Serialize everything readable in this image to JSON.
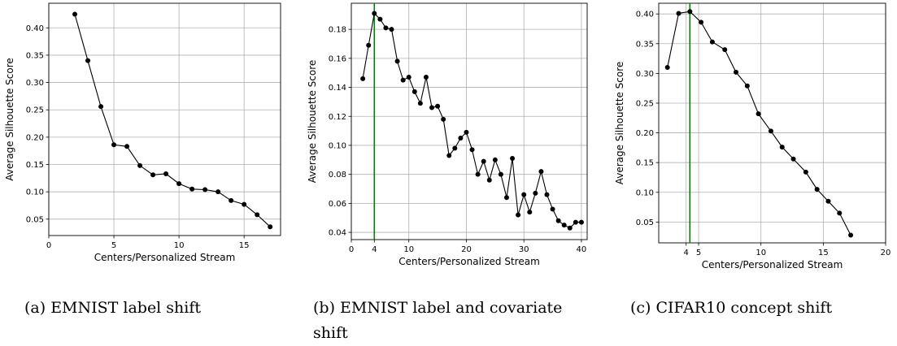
{
  "chart_data": [
    {
      "type": "line",
      "xlabel": "Centers/Personalized Stream",
      "ylabel": "Average Silhouette Score",
      "xlim": [
        0,
        17.8
      ],
      "ylim": [
        0.02,
        0.445
      ],
      "xticks": [
        0,
        5,
        10,
        15
      ],
      "yticks": [
        0.05,
        0.1,
        0.15,
        0.2,
        0.25,
        0.3,
        0.35,
        0.4
      ],
      "grid": true,
      "series": [
        {
          "x": [
            2,
            3,
            4,
            5,
            6,
            7,
            8,
            9,
            10,
            11,
            12,
            13,
            14,
            15,
            16,
            17
          ],
          "y": [
            0.425,
            0.34,
            0.256,
            0.186,
            0.183,
            0.148,
            0.131,
            0.133,
            0.115,
            0.105,
            0.104,
            0.1,
            0.084,
            0.077,
            0.058,
            0.036
          ]
        }
      ],
      "caption": "(a) EMNIST label shift"
    },
    {
      "type": "line",
      "xlabel": "Centers/Personalized Stream",
      "ylabel": "Average Silhouette Score",
      "xlim": [
        0,
        41
      ],
      "ylim": [
        0.035,
        0.198
      ],
      "xticks": [
        0,
        4,
        10,
        20,
        30,
        40
      ],
      "yticks": [
        0.04,
        0.06,
        0.08,
        0.1,
        0.12,
        0.14,
        0.16,
        0.18
      ],
      "grid": true,
      "vline": 4,
      "series": [
        {
          "x": [
            2,
            3,
            4,
            5,
            6,
            7,
            8,
            9,
            10,
            11,
            12,
            13,
            14,
            15,
            16,
            17,
            18,
            19,
            20,
            21,
            22,
            23,
            24,
            25,
            26,
            27,
            28,
            29,
            30,
            31,
            32,
            33,
            34,
            35,
            36,
            37,
            38,
            39,
            40
          ],
          "y": [
            0.146,
            0.169,
            0.191,
            0.187,
            0.181,
            0.18,
            0.158,
            0.145,
            0.147,
            0.137,
            0.129,
            0.147,
            0.126,
            0.127,
            0.118,
            0.093,
            0.098,
            0.105,
            0.109,
            0.097,
            0.08,
            0.089,
            0.076,
            0.09,
            0.08,
            0.064,
            0.091,
            0.052,
            0.066,
            0.054,
            0.067,
            0.082,
            0.066,
            0.056,
            0.048,
            0.045,
            0.043,
            0.047,
            0.047
          ]
        }
      ],
      "caption": "(b) EMNIST label and covariate shift"
    },
    {
      "type": "line",
      "xlabel": "Centers/Personalized Stream",
      "ylabel": "Average Silhouette Score",
      "xlim": [
        1.8,
        20
      ],
      "ylim": [
        0.015,
        0.418
      ],
      "xticks": [
        4,
        5,
        10,
        15,
        20
      ],
      "yticks": [
        0.05,
        0.1,
        0.15,
        0.2,
        0.25,
        0.3,
        0.35,
        0.4
      ],
      "grid": true,
      "vline": 4.3,
      "series": [
        {
          "x": [
            2.5,
            3.4,
            4.3,
            5.2,
            6.1,
            7.1,
            8.0,
            8.9,
            9.8,
            10.8,
            11.7,
            12.6,
            13.6,
            14.5,
            15.4,
            16.3,
            17.2
          ],
          "y": [
            0.31,
            0.401,
            0.404,
            0.386,
            0.353,
            0.34,
            0.302,
            0.279,
            0.232,
            0.203,
            0.176,
            0.156,
            0.134,
            0.105,
            0.085,
            0.065,
            0.028
          ]
        }
      ],
      "caption": "(c) CIFAR10 concept shift"
    }
  ],
  "captions": {
    "a": "(a) EMNIST label shift",
    "b_line1": "(b) EMNIST label and covariate",
    "b_line2": "shift",
    "c": "(c) CIFAR10 concept shift"
  }
}
